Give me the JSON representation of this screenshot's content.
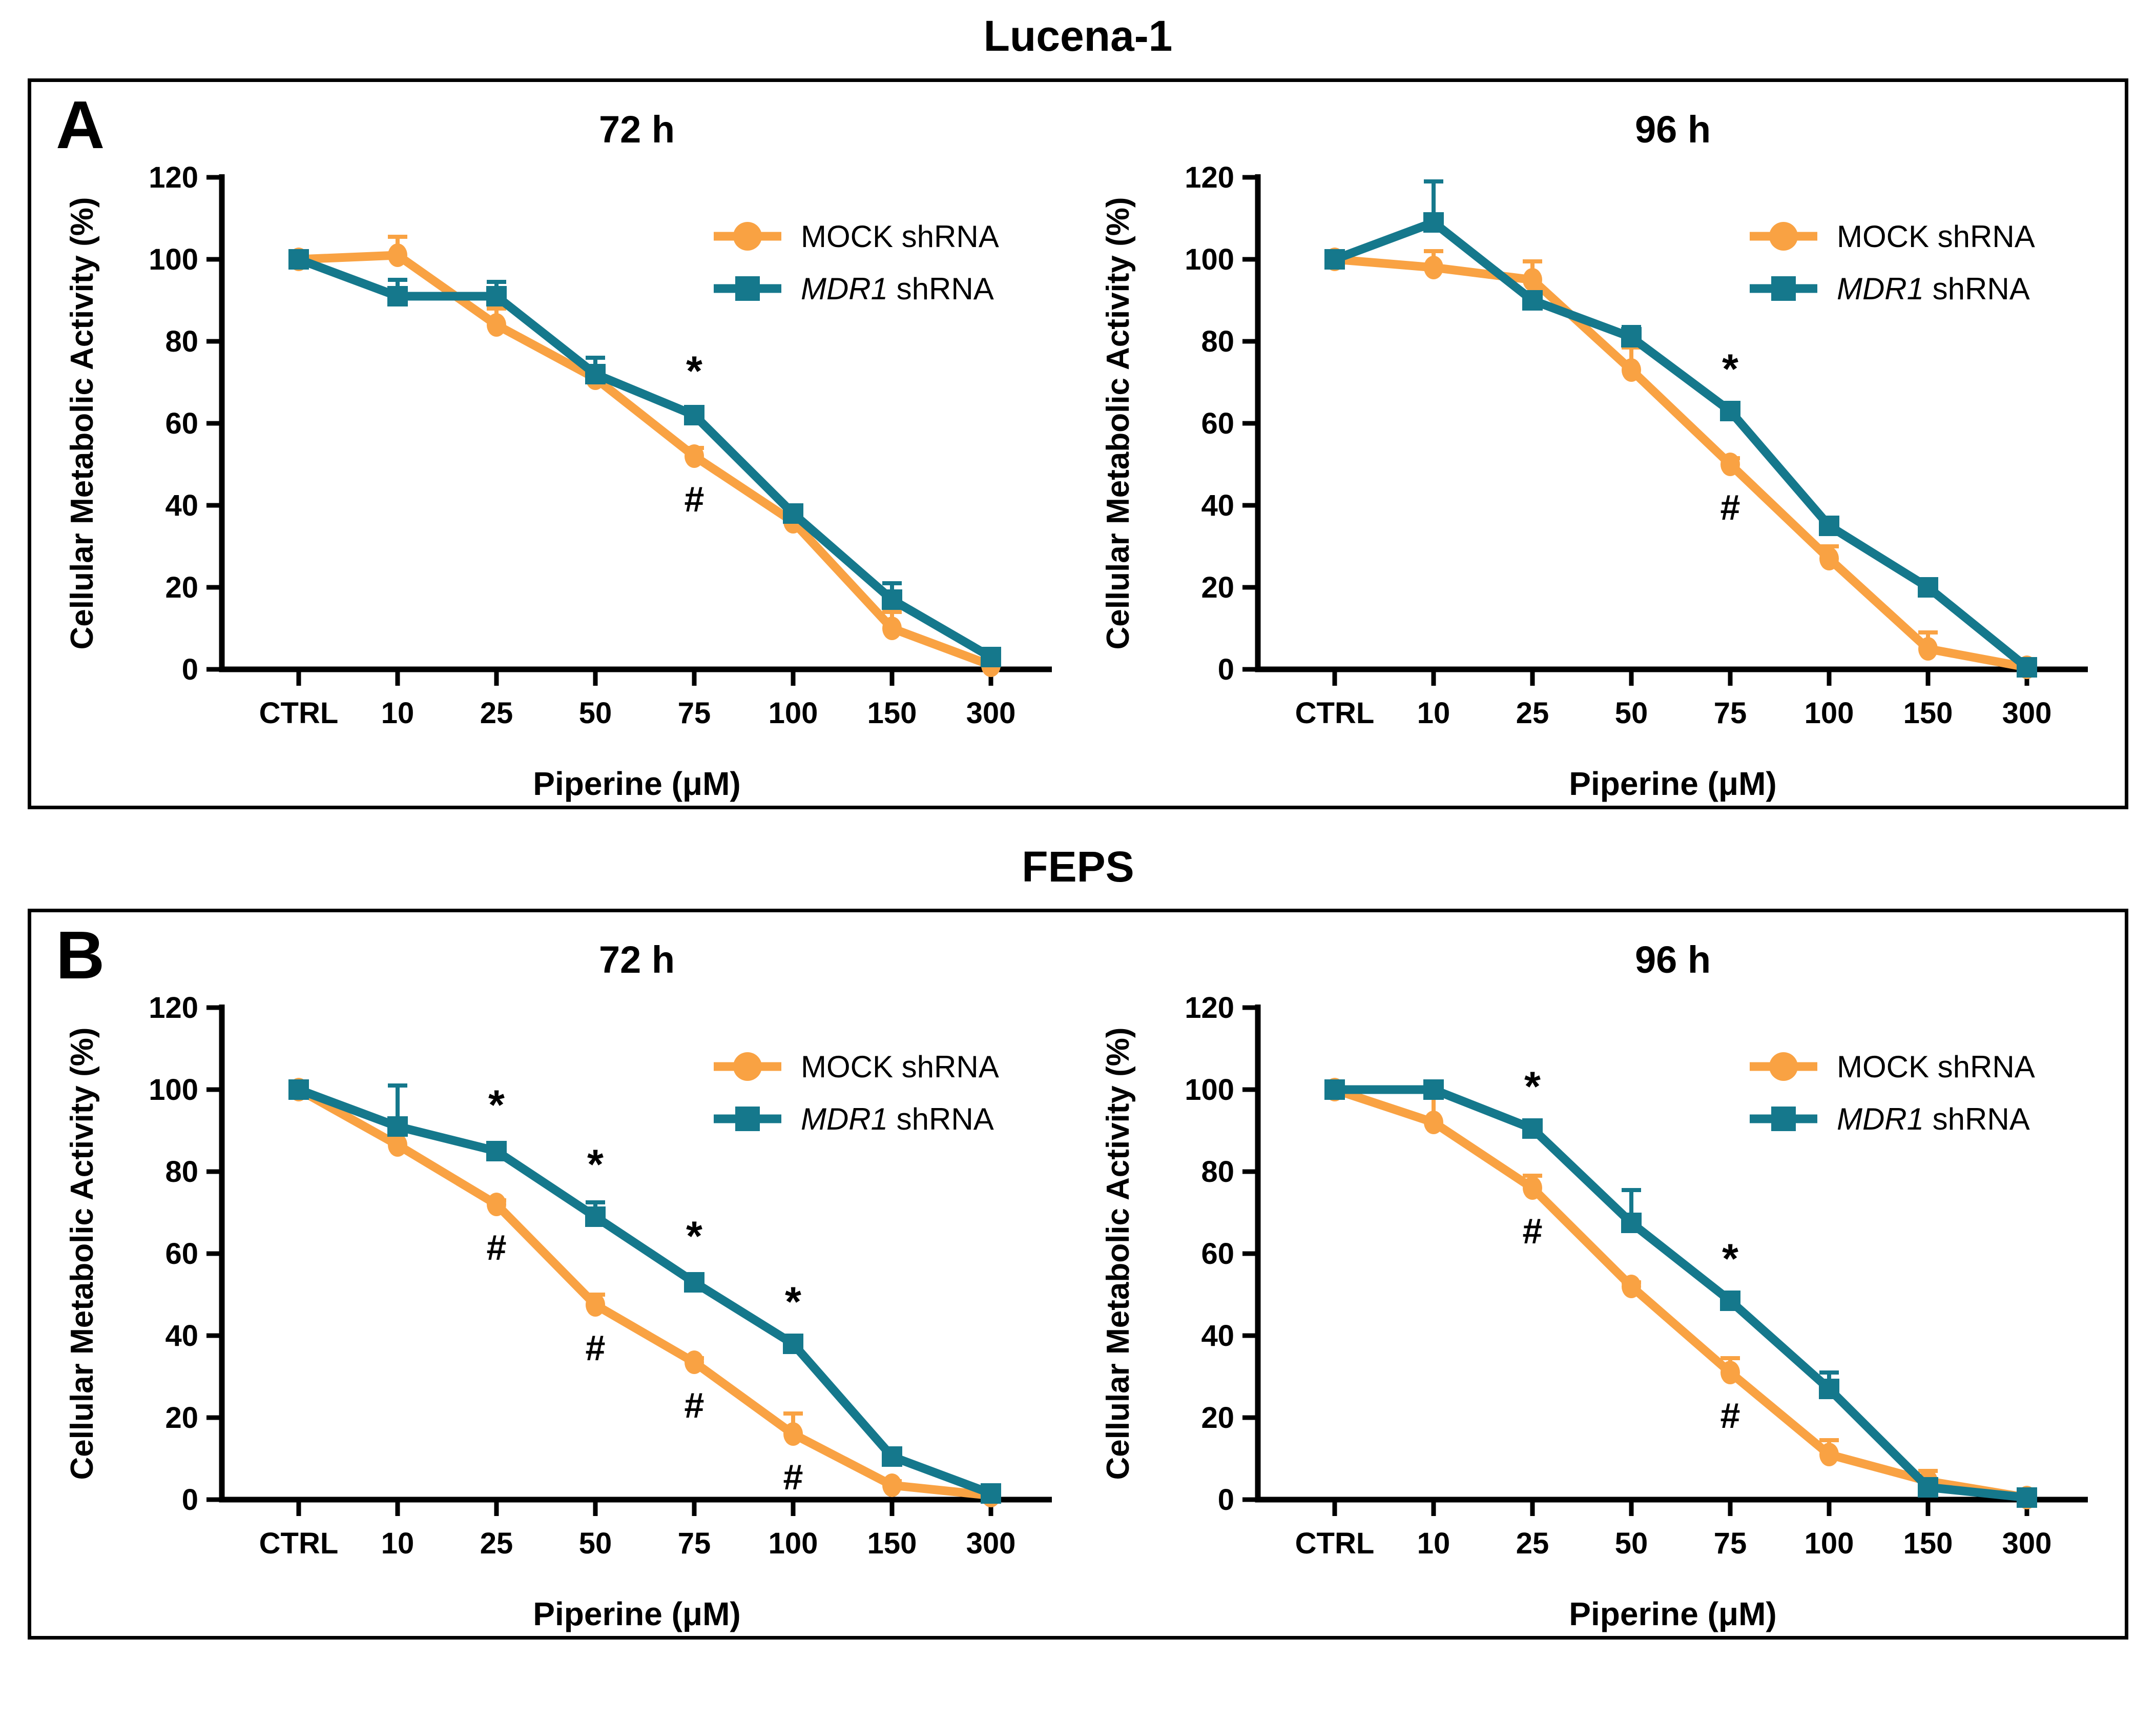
{
  "page": {
    "background": "#ffffff",
    "colors": {
      "mock": "#F9A243",
      "mdr1": "#15788C",
      "axis": "#000000",
      "text": "#000000"
    }
  },
  "sections": [
    {
      "letter": "A",
      "title": "Lucena-1"
    },
    {
      "letter": "B",
      "title": "FEPS"
    }
  ],
  "axes": {
    "x_label": "Piperine (μM)",
    "y_label": "Cellular Metabolic Activity (%)",
    "x_categories": [
      "CTRL",
      "10",
      "25",
      "50",
      "75",
      "100",
      "150",
      "300"
    ],
    "y_ticks": [
      0,
      20,
      40,
      60,
      80,
      100,
      120
    ]
  },
  "legend": {
    "position": "top-right",
    "entries": [
      {
        "italic": "",
        "text": "MOCK shRNA",
        "marker": "circle"
      },
      {
        "italic": "MDR1",
        "text": " shRNA",
        "marker": "square"
      }
    ]
  },
  "significance_note": {
    "star": "*",
    "hash": "#"
  },
  "chart_data": [
    {
      "type": "line",
      "panel": "A",
      "cell_line": "Lucena-1",
      "title": "72 h",
      "xlabel": "Piperine (μM)",
      "ylabel": "Cellular Metabolic Activity (%)",
      "ylim": [
        0,
        120
      ],
      "grid": false,
      "categories": [
        "CTRL",
        "10",
        "25",
        "50",
        "75",
        "100",
        "150",
        "300"
      ],
      "series": [
        {
          "name": "MOCK shRNA",
          "color": "#F9A243",
          "marker": "circle",
          "values": [
            100,
            101,
            84,
            71,
            52,
            36,
            10,
            1
          ],
          "err": [
            1,
            4.5,
            4,
            1.5,
            2,
            1,
            4,
            1
          ]
        },
        {
          "name": "MDR1 shRNA",
          "color": "#15788C",
          "marker": "square",
          "values": [
            100,
            91,
            91,
            72,
            62,
            38,
            17,
            3
          ],
          "err": [
            1,
            4,
            3.5,
            4,
            1.5,
            1,
            4,
            2
          ]
        }
      ],
      "annotations": [
        {
          "symbol": "*",
          "category": "75",
          "series": "MDR1 shRNA",
          "position": "above"
        },
        {
          "symbol": "#",
          "category": "75",
          "series": "MOCK shRNA",
          "position": "below"
        }
      ]
    },
    {
      "type": "line",
      "panel": "A",
      "cell_line": "Lucena-1",
      "title": "96 h",
      "xlabel": "Piperine (μM)",
      "ylabel": "Cellular Metabolic Activity (%)",
      "ylim": [
        0,
        120
      ],
      "grid": false,
      "categories": [
        "CTRL",
        "10",
        "25",
        "50",
        "75",
        "100",
        "150",
        "300"
      ],
      "series": [
        {
          "name": "MOCK shRNA",
          "color": "#F9A243",
          "marker": "circle",
          "values": [
            100,
            98,
            95,
            73,
            50,
            27,
            5,
            0.5
          ],
          "err": [
            1,
            4,
            4.5,
            5.5,
            1.5,
            3,
            4,
            0.5
          ]
        },
        {
          "name": "MDR1 shRNA",
          "color": "#15788C",
          "marker": "square",
          "values": [
            100,
            109,
            90,
            81,
            63,
            35,
            20,
            0.5
          ],
          "err": [
            1,
            10,
            2,
            2.5,
            1,
            2,
            2,
            0.5
          ]
        }
      ],
      "annotations": [
        {
          "symbol": "*",
          "category": "75",
          "series": "MDR1 shRNA",
          "position": "above"
        },
        {
          "symbol": "#",
          "category": "75",
          "series": "MOCK shRNA",
          "position": "below"
        }
      ]
    },
    {
      "type": "line",
      "panel": "B",
      "cell_line": "FEPS",
      "title": "72 h",
      "xlabel": "Piperine (μM)",
      "ylabel": "Cellular Metabolic Activity (%)",
      "ylim": [
        0,
        120
      ],
      "grid": false,
      "categories": [
        "CTRL",
        "10",
        "25",
        "50",
        "75",
        "100",
        "150",
        "300"
      ],
      "series": [
        {
          "name": "MOCK shRNA",
          "color": "#F9A243",
          "marker": "circle",
          "values": [
            100,
            86.5,
            72,
            47.5,
            33.5,
            16,
            3.5,
            1
          ],
          "err": [
            1.5,
            2.5,
            1,
            2.5,
            1,
            5,
            1,
            0.5
          ]
        },
        {
          "name": "MDR1 shRNA",
          "color": "#15788C",
          "marker": "square",
          "values": [
            100,
            91,
            85,
            69,
            53,
            38,
            10.5,
            1.5
          ],
          "err": [
            1.5,
            10,
            2,
            3.5,
            2,
            1,
            1,
            0.5
          ]
        }
      ],
      "annotations": [
        {
          "symbol": "*",
          "category": "25",
          "series": "MDR1 shRNA",
          "position": "above"
        },
        {
          "symbol": "*",
          "category": "50",
          "series": "MDR1 shRNA",
          "position": "above"
        },
        {
          "symbol": "*",
          "category": "75",
          "series": "MDR1 shRNA",
          "position": "above"
        },
        {
          "symbol": "*",
          "category": "100",
          "series": "MDR1 shRNA",
          "position": "above"
        },
        {
          "symbol": "#",
          "category": "25",
          "series": "MOCK shRNA",
          "position": "below"
        },
        {
          "symbol": "#",
          "category": "50",
          "series": "MOCK shRNA",
          "position": "below"
        },
        {
          "symbol": "#",
          "category": "75",
          "series": "MOCK shRNA",
          "position": "below"
        },
        {
          "symbol": "#",
          "category": "100",
          "series": "MOCK shRNA",
          "position": "below"
        }
      ]
    },
    {
      "type": "line",
      "panel": "B",
      "cell_line": "FEPS",
      "title": "96 h",
      "xlabel": "Piperine (μM)",
      "ylabel": "Cellular Metabolic Activity (%)",
      "ylim": [
        0,
        120
      ],
      "grid": false,
      "categories": [
        "CTRL",
        "10",
        "25",
        "50",
        "75",
        "100",
        "150",
        "300"
      ],
      "series": [
        {
          "name": "MOCK shRNA",
          "color": "#F9A243",
          "marker": "circle",
          "values": [
            100,
            92,
            76,
            52,
            31,
            11,
            4.5,
            0.5
          ],
          "err": [
            1,
            7,
            3,
            1,
            3.5,
            3.5,
            2.5,
            0.5
          ]
        },
        {
          "name": "MDR1 shRNA",
          "color": "#15788C",
          "marker": "square",
          "values": [
            100,
            100,
            90.5,
            67.5,
            48.5,
            27,
            3,
            0.5
          ],
          "err": [
            1,
            1,
            1,
            8,
            1,
            4,
            1,
            0.5
          ]
        }
      ],
      "annotations": [
        {
          "symbol": "*",
          "category": "25",
          "series": "MDR1 shRNA",
          "position": "above"
        },
        {
          "symbol": "*",
          "category": "75",
          "series": "MDR1 shRNA",
          "position": "above"
        },
        {
          "symbol": "#",
          "category": "25",
          "series": "MOCK shRNA",
          "position": "below"
        },
        {
          "symbol": "#",
          "category": "75",
          "series": "MOCK shRNA",
          "position": "below"
        }
      ]
    }
  ]
}
